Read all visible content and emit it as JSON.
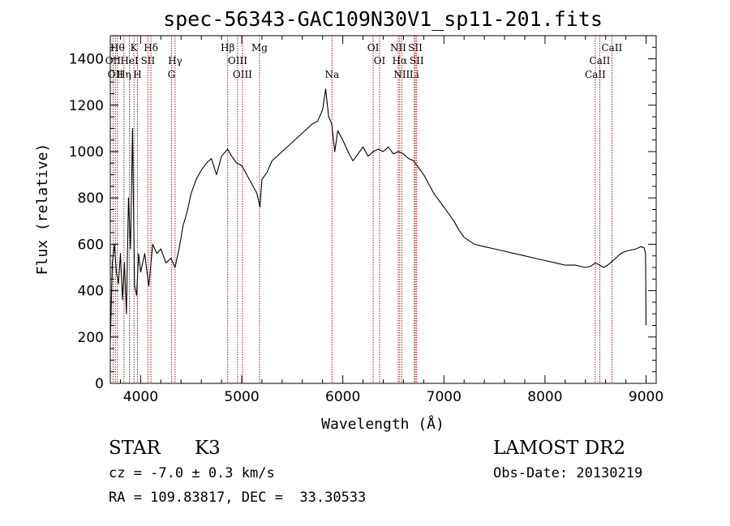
{
  "chart_data": {
    "type": "line",
    "title": "spec-56343-GAC109N30V1_sp11-201.fits",
    "xlabel": "Wavelength (Å)",
    "ylabel": "Flux (relative)",
    "xlim": [
      3700,
      9100
    ],
    "ylim": [
      0,
      1500
    ],
    "xticks": [
      4000,
      5000,
      6000,
      7000,
      8000,
      9000
    ],
    "yticks": [
      0,
      200,
      400,
      600,
      800,
      1000,
      1200,
      1400
    ],
    "grid": false,
    "series": [
      {
        "x": [
          3700,
          3720,
          3740,
          3760,
          3780,
          3800,
          3820,
          3840,
          3860,
          3880,
          3900,
          3920,
          3940,
          3960,
          3980,
          4000,
          4040,
          4080,
          4120,
          4160,
          4200,
          4250,
          4300,
          4340,
          4380,
          4420,
          4460,
          4500,
          4550,
          4600,
          4650,
          4700,
          4750,
          4800,
          4860,
          4900,
          4950,
          5000,
          5050,
          5100,
          5150,
          5180,
          5200,
          5250,
          5300,
          5400,
          5500,
          5600,
          5700,
          5750,
          5800,
          5830,
          5860,
          5890,
          5920,
          5950,
          6000,
          6050,
          6100,
          6150,
          6200,
          6250,
          6300,
          6350,
          6400,
          6450,
          6500,
          6550,
          6600,
          6650,
          6700,
          6750,
          6800,
          6850,
          6900,
          6950,
          7000,
          7050,
          7100,
          7150,
          7200,
          7300,
          7400,
          7500,
          7600,
          7700,
          7800,
          7900,
          8000,
          8100,
          8200,
          8300,
          8400,
          8450,
          8500,
          8540,
          8580,
          8620,
          8660,
          8700,
          8750,
          8800,
          8850,
          8900,
          8950,
          8980,
          8995,
          9000
        ],
        "y": [
          180,
          520,
          600,
          480,
          430,
          560,
          360,
          520,
          300,
          800,
          580,
          1100,
          420,
          380,
          560,
          480,
          560,
          420,
          600,
          560,
          580,
          520,
          540,
          500,
          580,
          680,
          740,
          820,
          880,
          920,
          950,
          970,
          900,
          980,
          1010,
          980,
          950,
          940,
          900,
          860,
          820,
          760,
          880,
          910,
          960,
          1000,
          1040,
          1080,
          1120,
          1130,
          1180,
          1270,
          1150,
          1120,
          1000,
          1090,
          1050,
          1000,
          960,
          990,
          1020,
          980,
          1000,
          1010,
          1000,
          1020,
          990,
          1000,
          990,
          970,
          960,
          930,
          900,
          860,
          820,
          790,
          760,
          730,
          700,
          660,
          630,
          600,
          590,
          580,
          570,
          560,
          550,
          540,
          530,
          520,
          510,
          510,
          500,
          505,
          520,
          510,
          500,
          510,
          525,
          540,
          560,
          570,
          575,
          580,
          590,
          585,
          560,
          250
        ]
      }
    ],
    "line_markers": [
      {
        "wl": 3727,
        "label": "OII",
        "row": 1
      },
      {
        "wl": 3750,
        "label": "OII",
        "row": 2
      },
      {
        "wl": 3771,
        "label": "Hθ",
        "row": 0
      },
      {
        "wl": 3835,
        "label": "Hη",
        "row": 2
      },
      {
        "wl": 3889,
        "label": "HeI",
        "row": 1
      },
      {
        "wl": 3934,
        "label": "K",
        "row": 0
      },
      {
        "wl": 3969,
        "label": "H",
        "row": 2
      },
      {
        "wl": 4072,
        "label": "SII",
        "row": 1
      },
      {
        "wl": 4102,
        "label": "Hδ",
        "row": 0
      },
      {
        "wl": 4305,
        "label": "G",
        "row": 2
      },
      {
        "wl": 4341,
        "label": "Hγ",
        "row": 1
      },
      {
        "wl": 4861,
        "label": "Hβ",
        "row": 0
      },
      {
        "wl": 4959,
        "label": "OIII",
        "row": 1
      },
      {
        "wl": 5007,
        "label": "OIII",
        "row": 2
      },
      {
        "wl": 5176,
        "label": "Mg",
        "row": 0
      },
      {
        "wl": 5893,
        "label": "Na",
        "row": 2
      },
      {
        "wl": 6300,
        "label": "OI",
        "row": 0
      },
      {
        "wl": 6364,
        "label": "OI",
        "row": 1
      },
      {
        "wl": 6548,
        "label": "NII",
        "row": 0
      },
      {
        "wl": 6563,
        "label": "Hα",
        "row": 1
      },
      {
        "wl": 6583,
        "label": "NII",
        "row": 2
      },
      {
        "wl": 6707,
        "label": "Li",
        "row": 2
      },
      {
        "wl": 6717,
        "label": "SII",
        "row": 0
      },
      {
        "wl": 6731,
        "label": "SII",
        "row": 1
      },
      {
        "wl": 8498,
        "label": "CaII",
        "row": 2
      },
      {
        "wl": 8542,
        "label": "CaII",
        "row": 1
      },
      {
        "wl": 8662,
        "label": "CaII",
        "row": 0
      }
    ]
  },
  "footer": {
    "class_label": "STAR",
    "subclass_label": "K3",
    "survey_label": "LAMOST DR2",
    "redshift_text": "cz = -7.0 ± 0.3 km/s",
    "obsdate_text": "Obs-Date: 20130219",
    "coords_text": "RA = 109.83817, DEC =  33.30533"
  },
  "colors": {
    "spectrum": "#000000",
    "line_marker": "#a00000",
    "axes": "#000000",
    "background": "#ffffff"
  }
}
